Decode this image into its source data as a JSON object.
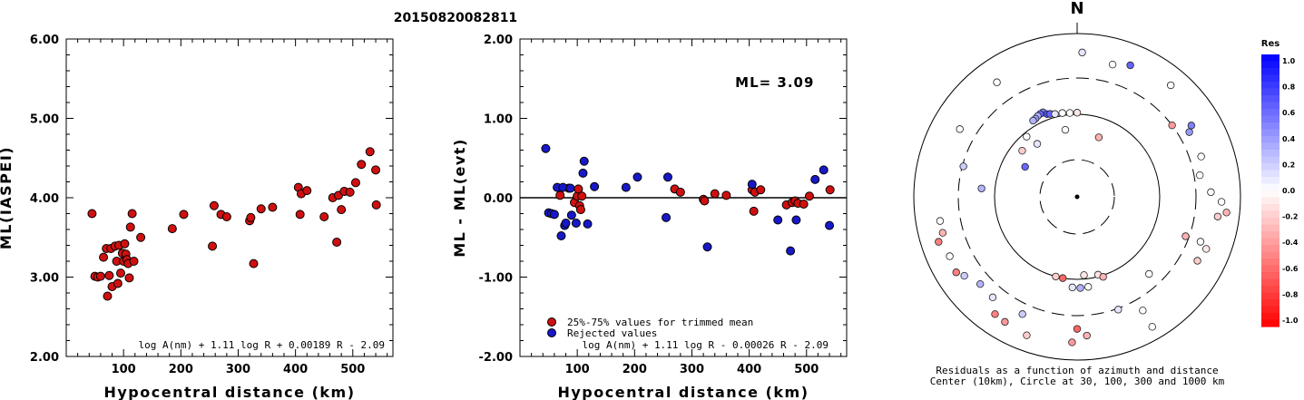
{
  "title": "20150820082811",
  "chart_data": [
    {
      "type": "scatter",
      "ylabel": "ML(IASPEI)",
      "xlabel": "Hypocentral distance (km)",
      "xlim": [
        0,
        570
      ],
      "ylim": [
        2.0,
        6.0
      ],
      "xticks": [
        "100",
        "200",
        "300",
        "400",
        "500"
      ],
      "yticks": [
        "2.00",
        "3.00",
        "4.00",
        "5.00",
        "6.00"
      ],
      "formula": "log A(nm) + 1.11 log R + 0.00189 R - 2.09",
      "series": [
        {
          "color": "#d01010",
          "points": [
            [
              45,
              3.8
            ],
            [
              50,
              3.01
            ],
            [
              55,
              3.0
            ],
            [
              60,
              3.01
            ],
            [
              65,
              3.25
            ],
            [
              70,
              3.36
            ],
            [
              72,
              2.76
            ],
            [
              75,
              3.02
            ],
            [
              78,
              3.36
            ],
            [
              80,
              2.88
            ],
            [
              85,
              3.39
            ],
            [
              88,
              3.2
            ],
            [
              90,
              2.92
            ],
            [
              92,
              3.4
            ],
            [
              95,
              3.05
            ],
            [
              98,
              3.3
            ],
            [
              100,
              3.2
            ],
            [
              102,
              3.42
            ],
            [
              104,
              3.29
            ],
            [
              106,
              3.22
            ],
            [
              108,
              3.17
            ],
            [
              110,
              2.99
            ],
            [
              112,
              3.63
            ],
            [
              115,
              3.8
            ],
            [
              118,
              3.2
            ],
            [
              130,
              3.5
            ],
            [
              185,
              3.61
            ],
            [
              205,
              3.79
            ],
            [
              255,
              3.39
            ],
            [
              258,
              3.9
            ],
            [
              270,
              3.79
            ],
            [
              280,
              3.76
            ],
            [
              320,
              3.71
            ],
            [
              322,
              3.75
            ],
            [
              327,
              3.17
            ],
            [
              340,
              3.86
            ],
            [
              360,
              3.88
            ],
            [
              405,
              4.13
            ],
            [
              408,
              3.79
            ],
            [
              410,
              4.05
            ],
            [
              420,
              4.09
            ],
            [
              450,
              3.76
            ],
            [
              465,
              4.0
            ],
            [
              472,
              3.44
            ],
            [
              475,
              4.03
            ],
            [
              480,
              3.85
            ],
            [
              485,
              4.08
            ],
            [
              495,
              4.07
            ],
            [
              505,
              4.19
            ],
            [
              515,
              4.42
            ],
            [
              530,
              4.58
            ],
            [
              540,
              4.35
            ],
            [
              541,
              3.91
            ]
          ]
        }
      ]
    },
    {
      "type": "scatter",
      "ylabel": "ML - ML(evt)",
      "xlabel": "Hypocentral distance (km)",
      "xlim": [
        0,
        570
      ],
      "ylim": [
        -2.0,
        2.0
      ],
      "xticks": [
        "100",
        "200",
        "300",
        "400",
        "500"
      ],
      "yticks": [
        "-2.00",
        "-1.00",
        "0.00",
        "1.00",
        "2.00"
      ],
      "annotation": "ML= 3.09",
      "formula": "log A(nm) + 1.11 log R - 0.00026 R - 2.09",
      "legend": [
        {
          "label": "25%-75% values for trimmed mean",
          "color": "#d01010"
        },
        {
          "label": "Rejected values",
          "color": "#1818c8"
        }
      ],
      "series": [
        {
          "name": "25%-75% values for trimmed mean",
          "color": "#d01010",
          "points": [
            [
              70,
              0.03
            ],
            [
              85,
              0.12
            ],
            [
              95,
              -0.06
            ],
            [
              100,
              0.02
            ],
            [
              102,
              0.11
            ],
            [
              104,
              -0.1
            ],
            [
              106,
              -0.15
            ],
            [
              108,
              0.02
            ],
            [
              270,
              0.11
            ],
            [
              280,
              0.07
            ],
            [
              320,
              -0.02
            ],
            [
              322,
              -0.04
            ],
            [
              340,
              0.05
            ],
            [
              360,
              0.03
            ],
            [
              405,
              0.1
            ],
            [
              408,
              -0.17
            ],
            [
              410,
              0.07
            ],
            [
              420,
              0.1
            ],
            [
              465,
              -0.09
            ],
            [
              475,
              -0.06
            ],
            [
              480,
              -0.04
            ],
            [
              485,
              -0.07
            ],
            [
              495,
              -0.08
            ],
            [
              505,
              0.02
            ],
            [
              541,
              0.1
            ]
          ]
        },
        {
          "name": "Rejected values",
          "color": "#1818c8",
          "points": [
            [
              45,
              0.62
            ],
            [
              50,
              -0.19
            ],
            [
              55,
              -0.2
            ],
            [
              60,
              -0.21
            ],
            [
              65,
              0.13
            ],
            [
              72,
              -0.48
            ],
            [
              75,
              0.13
            ],
            [
              78,
              -0.35
            ],
            [
              80,
              -0.32
            ],
            [
              88,
              0.12
            ],
            [
              90,
              -0.22
            ],
            [
              98,
              -0.32
            ],
            [
              110,
              0.31
            ],
            [
              112,
              0.46
            ],
            [
              118,
              -0.33
            ],
            [
              130,
              0.14
            ],
            [
              185,
              0.13
            ],
            [
              205,
              0.26
            ],
            [
              255,
              -0.25
            ],
            [
              258,
              0.26
            ],
            [
              327,
              -0.62
            ],
            [
              405,
              0.17
            ],
            [
              450,
              -0.28
            ],
            [
              472,
              -0.67
            ],
            [
              482,
              -0.28
            ],
            [
              515,
              0.23
            ],
            [
              530,
              0.35
            ],
            [
              540,
              -0.35
            ]
          ]
        }
      ]
    },
    {
      "type": "scatter",
      "north_label": "N",
      "caption_line1": "Residuals as a function of azimuth and distance",
      "caption_line2": "Center (10km), Circle at 30, 100, 300 and 1000 km",
      "colorbar_title": "Res",
      "colorbar_ticks": [
        "1.0",
        "0.8",
        "0.6",
        "0.4",
        "0.2",
        "0.0",
        "-0.2",
        "-0.4",
        "-0.6",
        "-0.8",
        "-1.0"
      ],
      "points_az_dist_res": [
        [
          2,
          600,
          0.1
        ],
        [
          22,
          560,
          0.6
        ],
        [
          15,
          490,
          0.0
        ],
        [
          -35,
          530,
          0.0
        ],
        [
          -60,
          470,
          0.0
        ],
        [
          40,
          620,
          0.0
        ],
        [
          -22,
          130,
          0.5
        ],
        [
          -24,
          128,
          0.6
        ],
        [
          -26,
          125,
          0.3
        ],
        [
          -28,
          120,
          0.4
        ],
        [
          -30,
          118,
          0.3
        ],
        [
          -20,
          118,
          0.7
        ],
        [
          -18,
          115,
          0.6
        ],
        [
          -15,
          110,
          0.1
        ],
        [
          -10,
          108,
          0.0
        ],
        [
          -5,
          105,
          0.0
        ],
        [
          0,
          105,
          -0.1
        ],
        [
          -40,
          90,
          0.0
        ],
        [
          -50,
          75,
          -0.2
        ],
        [
          -37,
          65,
          0.1
        ],
        [
          -10,
          68,
          0.0
        ],
        [
          -60,
          55,
          0.6
        ],
        [
          20,
          60,
          -0.3
        ],
        [
          53,
          300,
          -0.4
        ],
        [
          60,
          400,
          0.4
        ],
        [
          58,
          460,
          0.5
        ],
        [
          72,
          410,
          0.0
        ],
        [
          80,
          350,
          0.0
        ],
        [
          88,
          450,
          0.0
        ],
        [
          92,
          600,
          0.0
        ],
        [
          98,
          560,
          -0.2
        ],
        [
          96,
          700,
          -0.3
        ],
        [
          110,
          420,
          0.0
        ],
        [
          112,
          520,
          -0.1
        ],
        [
          118,
          480,
          -0.2
        ],
        [
          110,
          270,
          -0.3
        ],
        [
          137,
          200,
          0.0
        ],
        [
          150,
          420,
          0.0
        ],
        [
          165,
          95,
          -0.1
        ],
        [
          162,
          105,
          -0.3
        ],
        [
          175,
          90,
          -0.1
        ],
        [
          173,
          128,
          0.0
        ],
        [
          178,
          130,
          0.3
        ],
        [
          183,
          128,
          0.1
        ],
        [
          195,
          100,
          -0.2
        ],
        [
          190,
          100,
          -0.6
        ],
        [
          180,
          430,
          -0.6
        ],
        [
          182,
          620,
          -0.4
        ],
        [
          176,
          520,
          -0.3
        ],
        [
          205,
          400,
          0.2
        ],
        [
          215,
          580,
          -0.5
        ],
        [
          228,
          410,
          0.3
        ],
        [
          238,
          570,
          -0.5
        ],
        [
          255,
          520,
          -0.3
        ],
        [
          245,
          540,
          0.0
        ],
        [
          -85,
          150,
          0.3
        ],
        [
          -75,
          290,
          0.2
        ],
        [
          -100,
          520,
          0.0
        ],
        [
          -108,
          620,
          -0.5
        ],
        [
          -125,
          500,
          0.2
        ],
        [
          -140,
          420,
          0.1
        ],
        [
          -150,
          600,
          -0.4
        ],
        [
          -160,
          650,
          -0.2
        ],
        [
          150,
          700,
          0.0
        ],
        [
          160,
          310,
          0.1
        ]
      ]
    }
  ]
}
